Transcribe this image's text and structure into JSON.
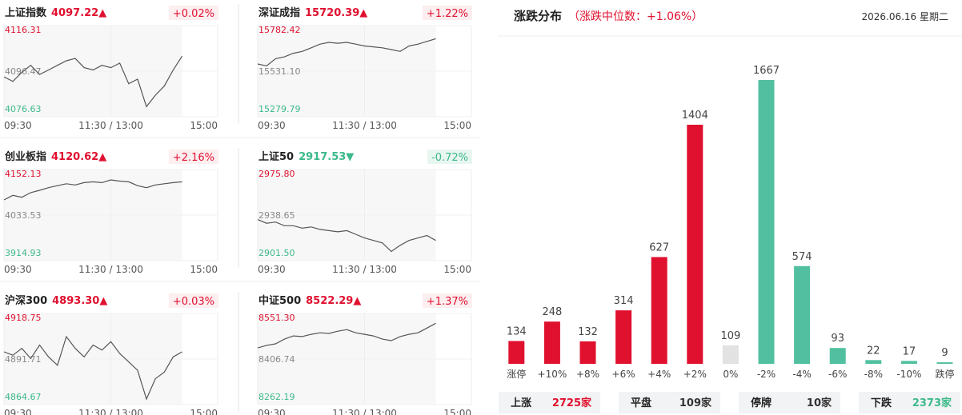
{
  "charts": [
    {
      "type": "line",
      "name": "上证指数",
      "price": "4097.22▲",
      "change": "+0.02%",
      "color": "#e0102f",
      "line_color": "#555555",
      "ylim": [
        4076.63,
        4116.31
      ],
      "yticks": [
        4076.63,
        4096.47,
        4116.31
      ],
      "xlim": [
        0,
        240
      ],
      "xticks": [
        {
          "value": 0,
          "label": "09:30"
        },
        {
          "value": 120,
          "label": "11:30 / 13:00"
        },
        {
          "value": 240,
          "label": "15:00"
        }
      ],
      "grid": true,
      "x": [
        0,
        10,
        20,
        30,
        40,
        50,
        60,
        70,
        80,
        90,
        100,
        110,
        120,
        130,
        140,
        150,
        160,
        170,
        180,
        190,
        200
      ],
      "values": [
        4094,
        4092,
        4096,
        4099,
        4095,
        4097,
        4099,
        4101,
        4102,
        4098,
        4097,
        4099,
        4098,
        4100,
        4091,
        4093,
        4081,
        4086,
        4090,
        4097,
        4103
      ]
    },
    {
      "type": "line",
      "name": "深证成指",
      "price": "15720.39▲",
      "change": "+1.22%",
      "color": "#e0102f",
      "line_color": "#555555",
      "ylim": [
        15279.79,
        15782.42
      ],
      "yticks": [
        15279.79,
        {
          "value": 15531.1,
          "label": "15531.10"
        },
        15782.42
      ],
      "xlim": [
        0,
        240
      ],
      "xticks": [
        {
          "value": 0,
          "label": "09:30"
        },
        {
          "value": 120,
          "label": "11:30 / 13:00"
        },
        {
          "value": 240,
          "label": "15:00"
        }
      ],
      "grid": true,
      "x": [
        0,
        10,
        20,
        30,
        40,
        50,
        60,
        70,
        80,
        90,
        100,
        110,
        120,
        130,
        140,
        150,
        160,
        170,
        180,
        190,
        200
      ],
      "values": [
        15571,
        15560,
        15600,
        15610,
        15630,
        15640,
        15660,
        15680,
        15690,
        15685,
        15690,
        15680,
        15670,
        15665,
        15660,
        15650,
        15640,
        15670,
        15680,
        15695,
        15710
      ]
    },
    {
      "type": "line",
      "name": "创业板指",
      "price": "4120.62▲",
      "change": "+2.16%",
      "color": "#e0102f",
      "line_color": "#555555",
      "ylim": [
        3914.93,
        4152.13
      ],
      "yticks": [
        3914.93,
        4033.53,
        4152.13
      ],
      "xlim": [
        0,
        240
      ],
      "xticks": [
        {
          "value": 0,
          "label": "09:30"
        },
        {
          "value": 120,
          "label": "11:30 / 13:00"
        },
        {
          "value": 240,
          "label": "15:00"
        }
      ],
      "grid": true,
      "x": [
        0,
        10,
        20,
        30,
        40,
        50,
        60,
        70,
        80,
        90,
        100,
        110,
        120,
        130,
        140,
        150,
        160,
        170,
        180,
        190,
        200
      ],
      "values": [
        4073,
        4085,
        4080,
        4092,
        4098,
        4105,
        4110,
        4115,
        4112,
        4118,
        4120,
        4118,
        4125,
        4122,
        4120,
        4110,
        4105,
        4112,
        4115,
        4118,
        4120
      ]
    },
    {
      "type": "line",
      "name": "上证50",
      "price": "2917.53▼",
      "change": "-0.72%",
      "color": "#3cb98a",
      "line_color": "#555555",
      "ylim": [
        2901.5,
        2975.8
      ],
      "yticks": [
        {
          "value": 2901.5,
          "label": "2901.50"
        },
        2938.65,
        {
          "value": 2975.8,
          "label": "2975.80"
        }
      ],
      "xlim": [
        0,
        240
      ],
      "xticks": [
        {
          "value": 0,
          "label": "09:30"
        },
        {
          "value": 120,
          "label": "11:30 / 13:00"
        },
        {
          "value": 240,
          "label": "15:00"
        }
      ],
      "grid": true,
      "x": [
        0,
        10,
        20,
        30,
        40,
        50,
        60,
        70,
        80,
        90,
        100,
        110,
        120,
        130,
        140,
        150,
        160,
        170,
        180,
        190,
        200
      ],
      "values": [
        2935,
        2932,
        2933,
        2930,
        2930,
        2928,
        2929,
        2927,
        2926,
        2925,
        2926,
        2923,
        2920,
        2918,
        2916,
        2909,
        2914,
        2918,
        2920,
        2922,
        2918
      ]
    },
    {
      "type": "line",
      "name": "沪深300",
      "price": "4893.30▲",
      "change": "+0.03%",
      "color": "#e0102f",
      "line_color": "#555555",
      "ylim": [
        4864.67,
        4918.75
      ],
      "yticks": [
        4864.67,
        4891.71,
        4918.75
      ],
      "xlim": [
        0,
        240
      ],
      "xticks": [
        {
          "value": 0,
          "label": "09:30"
        },
        {
          "value": 120,
          "label": "11:30 / 13:00"
        },
        {
          "value": 240,
          "label": "15:00"
        }
      ],
      "grid": true,
      "x": [
        0,
        10,
        20,
        30,
        40,
        50,
        60,
        70,
        80,
        90,
        100,
        110,
        120,
        130,
        140,
        150,
        160,
        170,
        180,
        190,
        200
      ],
      "values": [
        4896,
        4894,
        4898,
        4892,
        4900,
        4893,
        4888,
        4905,
        4898,
        4893,
        4900,
        4897,
        4902,
        4895,
        4890,
        4885,
        4868,
        4880,
        4884,
        4893,
        4896
      ]
    },
    {
      "type": "line",
      "name": "中证500",
      "price": "8522.29▲",
      "change": "+1.37%",
      "color": "#e0102f",
      "line_color": "#555555",
      "ylim": [
        8262.19,
        8551.3
      ],
      "yticks": [
        8262.19,
        8406.74,
        {
          "value": 8551.3,
          "label": "8551.30"
        }
      ],
      "xlim": [
        0,
        240
      ],
      "xticks": [
        {
          "value": 0,
          "label": "09:30"
        },
        {
          "value": 120,
          "label": "11:30 / 13:00"
        },
        {
          "value": 240,
          "label": "15:00"
        }
      ],
      "grid": true,
      "x": [
        0,
        10,
        20,
        30,
        40,
        50,
        60,
        70,
        80,
        90,
        100,
        110,
        120,
        130,
        140,
        150,
        160,
        170,
        180,
        190,
        200
      ],
      "values": [
        8442,
        8450,
        8455,
        8470,
        8480,
        8478,
        8485,
        8490,
        8488,
        8495,
        8500,
        8490,
        8485,
        8480,
        8470,
        8465,
        8478,
        8485,
        8490,
        8505,
        8520
      ]
    }
  ],
  "chart_data": {
    "type": "bar",
    "title": "涨跌分布",
    "subtitle": "（涨跌中位数：+1.06%）",
    "date": "2026.06.16 星期二",
    "categories": [
      "涨停",
      "+10%",
      "+8%",
      "+6%",
      "+4%",
      "+2%",
      "0%",
      "-2%",
      "-4%",
      "-6%",
      "-8%",
      "-10%",
      "跌停"
    ],
    "values": [
      134,
      248,
      132,
      314,
      627,
      1404,
      109,
      1667,
      574,
      93,
      22,
      17,
      9
    ],
    "colors": [
      "#e0102f",
      "#e0102f",
      "#e0102f",
      "#e0102f",
      "#e0102f",
      "#e0102f",
      "#e2e2e2",
      "#52c0a0",
      "#52c0a0",
      "#52c0a0",
      "#52c0a0",
      "#52c0a0",
      "#52c0a0"
    ]
  },
  "stats": [
    {
      "label": "上涨",
      "value": "2725家",
      "color": "#e0102f"
    },
    {
      "label": "平盘",
      "value": "109家",
      "color": "#333333"
    },
    {
      "label": "停牌",
      "value": "10家",
      "color": "#333333"
    },
    {
      "label": "下跌",
      "value": "2373家",
      "color": "#3cb98a"
    }
  ]
}
